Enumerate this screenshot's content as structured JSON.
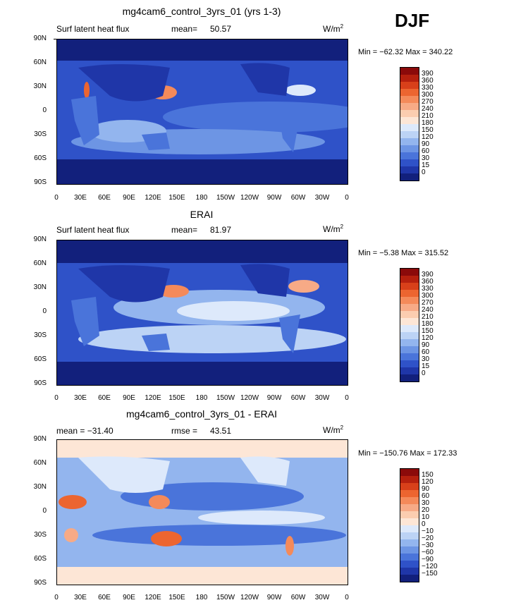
{
  "figure": {
    "season": "DJF",
    "units": "W/m",
    "units_exp": "2"
  },
  "chart_data": [
    {
      "type": "heatmap",
      "title": "mg4cam6_control_3yrs_01 (yrs 1-3)",
      "variable": "Surf latent heat flux",
      "stat_label": "mean=",
      "stat_value": "50.57",
      "minmax": "Min = −62.32 Max = 340.22",
      "x_ticks": [
        "0",
        "30E",
        "60E",
        "90E",
        "120E",
        "150E",
        "180",
        "150W",
        "120W",
        "90W",
        "60W",
        "30W",
        "0"
      ],
      "y_ticks": [
        "90N",
        "60N",
        "30N",
        "0",
        "30S",
        "60S",
        "90S"
      ],
      "levels": [
        "390",
        "360",
        "330",
        "300",
        "270",
        "240",
        "210",
        "180",
        "150",
        "120",
        "90",
        "60",
        "30",
        "15",
        "0"
      ],
      "colors": [
        "#8b0a0a",
        "#b5200e",
        "#d8401a",
        "#ec6530",
        "#f48a5a",
        "#f7aa86",
        "#fbcdb0",
        "#fde6d6",
        "#dde9fb",
        "#bcd3f5",
        "#93b5ee",
        "#6d95e4",
        "#4a74da",
        "#2f52c8",
        "#1f36a8",
        "#12207c"
      ]
    },
    {
      "type": "heatmap",
      "title": "ERAI",
      "variable": "Surf latent heat flux",
      "stat_label": "mean=",
      "stat_value": "81.97",
      "minmax": "Min =  −5.38 Max = 315.52",
      "x_ticks": [
        "0",
        "30E",
        "60E",
        "90E",
        "120E",
        "150E",
        "180",
        "150W",
        "120W",
        "90W",
        "60W",
        "30W",
        "0"
      ],
      "y_ticks": [
        "90N",
        "60N",
        "30N",
        "0",
        "30S",
        "60S",
        "90S"
      ],
      "levels": [
        "390",
        "360",
        "330",
        "300",
        "270",
        "240",
        "210",
        "180",
        "150",
        "120",
        "90",
        "60",
        "30",
        "15",
        "0"
      ],
      "colors": [
        "#8b0a0a",
        "#b5200e",
        "#d8401a",
        "#ec6530",
        "#f48a5a",
        "#f7aa86",
        "#fbcdb0",
        "#fde6d6",
        "#dde9fb",
        "#bcd3f5",
        "#93b5ee",
        "#6d95e4",
        "#4a74da",
        "#2f52c8",
        "#1f36a8",
        "#12207c"
      ]
    },
    {
      "type": "heatmap",
      "title": "mg4cam6_control_3yrs_01 - ERAI",
      "stat_label": "mean = −31.40",
      "rmse_label": "rmse =",
      "rmse_value": "43.51",
      "minmax": "Min = −150.76 Max = 172.33",
      "x_ticks": [
        "0",
        "30E",
        "60E",
        "90E",
        "120E",
        "150E",
        "180",
        "150W",
        "120W",
        "90W",
        "60W",
        "30W",
        "0"
      ],
      "y_ticks": [
        "90N",
        "60N",
        "30N",
        "0",
        "30S",
        "60S",
        "90S"
      ],
      "levels": [
        "150",
        "120",
        "90",
        "60",
        "30",
        "20",
        "10",
        "0",
        "−10",
        "−20",
        "−30",
        "−60",
        "−90",
        "−120",
        "−150"
      ],
      "colors": [
        "#8b0a0a",
        "#b5200e",
        "#d8401a",
        "#ec6530",
        "#f48a5a",
        "#f7aa86",
        "#fbcdb0",
        "#fde6d6",
        "#dde9fb",
        "#bcd3f5",
        "#93b5ee",
        "#6d95e4",
        "#4a74da",
        "#2f52c8",
        "#1f36a8",
        "#12207c"
      ]
    }
  ]
}
